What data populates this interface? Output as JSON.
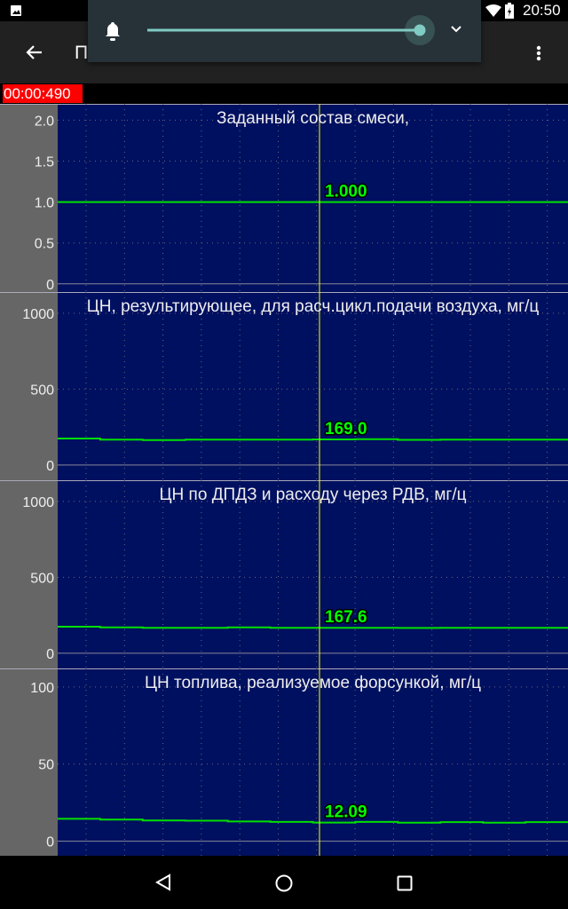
{
  "status_bar": {
    "time": "20:50",
    "icons": [
      "image-icon",
      "wifi-icon",
      "battery-charging-icon"
    ]
  },
  "toolbar": {
    "title": "П",
    "back_icon": "arrow-left-icon",
    "menu_icon": "more-vert-icon"
  },
  "volume_popup": {
    "icon": "bell-icon",
    "level": 1.0,
    "expand_icon": "chevron-down-icon",
    "accent": "#80cbc4"
  },
  "timebar": {
    "time": "00:00:490"
  },
  "colors": {
    "plot_bg": "#001060",
    "axis_bg": "#666666",
    "line": "#00e000",
    "cursor": "#ffff00"
  },
  "chart_data": [
    {
      "type": "line",
      "title": "Заданный состав смеси,",
      "ylim": [
        -0.1,
        2.2
      ],
      "ticks": [
        "0",
        "0.5",
        "1.0",
        "1.5",
        "2.0"
      ],
      "tick_values": [
        0,
        0.5,
        1,
        1.5,
        2
      ],
      "cursor_value": "1.000",
      "values": [
        1,
        1,
        1,
        1,
        1,
        1,
        1,
        1,
        1,
        1,
        1,
        1,
        1
      ]
    },
    {
      "type": "line",
      "title": "ЦН, результирующее, для расч.цикл.подачи воздуха, мг/ц",
      "ylim": [
        -100,
        1140
      ],
      "ticks": [
        "0",
        "500",
        "1000"
      ],
      "tick_values": [
        0,
        500,
        1000
      ],
      "cursor_value": "169.0",
      "values": [
        175,
        168,
        165,
        168,
        168,
        168,
        169,
        171,
        166,
        168,
        168,
        168,
        169
      ]
    },
    {
      "type": "line",
      "title": "ЦН по ДПДЗ и расходу через РДВ, мг/ц",
      "ylim": [
        -100,
        1140
      ],
      "ticks": [
        "0",
        "500",
        "1000"
      ],
      "tick_values": [
        0,
        500,
        1000
      ],
      "cursor_value": "167.6",
      "values": [
        175,
        170,
        168,
        168,
        170,
        168,
        168,
        168,
        167,
        168,
        168,
        168,
        168
      ]
    },
    {
      "type": "line",
      "title": "ЦН топлива, реализуемое форсункой, мг/ц",
      "ylim": [
        -10,
        112
      ],
      "ticks": [
        "0",
        "50",
        "100"
      ],
      "tick_values": [
        0,
        50,
        100
      ],
      "cursor_value": "12.09",
      "values": [
        14.5,
        14,
        13.5,
        13.3,
        12.8,
        12.5,
        12.1,
        12.5,
        12,
        12.4,
        12,
        12.4,
        12.4
      ]
    }
  ],
  "nav_bar": {
    "icons": [
      "back-triangle-icon",
      "home-circle-icon",
      "recents-square-icon"
    ]
  }
}
